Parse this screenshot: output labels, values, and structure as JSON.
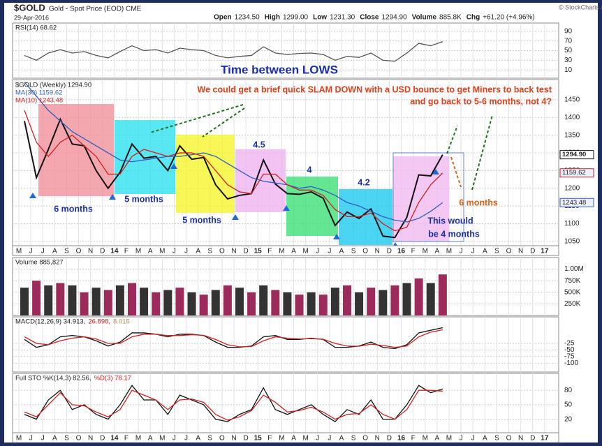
{
  "header": {
    "ticker": "$GOLD",
    "name": "Gold - Spot Price (EOD) CME",
    "date": "29-Apr-2016",
    "quote": [
      {
        "label": "Open",
        "value": "1234.50"
      },
      {
        "label": "High",
        "value": "1299.00"
      },
      {
        "label": "Low",
        "value": "1231.30"
      },
      {
        "label": "Close",
        "value": "1294.90"
      },
      {
        "label": "Volume",
        "value": "885.8K"
      },
      {
        "label": "Chg",
        "value": "+61.20 (+4.96%)"
      }
    ],
    "credit": "© StockCharts.com"
  },
  "chart_data": [
    {
      "type": "line",
      "ylim": [
        -7,
        107
      ],
      "yticks": [
        10,
        30,
        50,
        70,
        90
      ],
      "grid": true,
      "series": [
        {
          "name": "RSI(14) 68.62",
          "color": "#555555",
          "values": [
            40,
            30,
            45,
            52,
            45,
            48,
            40,
            35,
            48,
            60,
            50,
            52,
            45,
            55,
            52,
            50,
            40,
            35,
            38,
            40,
            58,
            45,
            42,
            44,
            45,
            42,
            30,
            38,
            36,
            45,
            30,
            28,
            45,
            65,
            60,
            68.62,
            null,
            null,
            null,
            null,
            null,
            null,
            null,
            null,
            null
          ]
        }
      ]
    },
    {
      "type": "line",
      "title": "Time between LOWS",
      "ylim": [
        1038,
        1507
      ],
      "yticks": [
        1050,
        1100,
        1150,
        1200,
        1250,
        1300,
        1350,
        1400,
        1450
      ],
      "grid": true,
      "categories": [
        "M",
        "J",
        "J",
        "A",
        "S",
        "O",
        "N",
        "D",
        "14",
        "F",
        "M",
        "A",
        "M",
        "J",
        "J",
        "A",
        "S",
        "O",
        "N",
        "D",
        "15",
        "F",
        "M",
        "A",
        "M",
        "J",
        "J",
        "A",
        "S",
        "O",
        "N",
        "D",
        "16",
        "F",
        "M",
        "A",
        "M",
        "J",
        "J",
        "A",
        "S",
        "O",
        "N",
        "D",
        "17"
      ],
      "series": [
        {
          "name": "$GOLD (Weekly) 1294.90",
          "color": "#111111",
          "values": [
            1390,
            1230,
            1310,
            1395,
            1325,
            1320,
            1250,
            1200,
            1245,
            1325,
            1285,
            1290,
            1250,
            1320,
            1282,
            1287,
            1210,
            1170,
            1180,
            1185,
            1280,
            1212,
            1185,
            1183,
            1190,
            1172,
            1095,
            1133,
            1115,
            1142,
            1065,
            1061,
            1118,
            1238,
            1235,
            1294.9,
            null,
            null,
            null,
            null,
            null,
            null,
            null,
            null,
            null
          ]
        },
        {
          "name": "MA(30) 1159.62",
          "color": "#2f5fc0",
          "values": [
            1500,
            1460,
            1420,
            1390,
            1360,
            1340,
            1320,
            1300,
            1280,
            1275,
            1280,
            1285,
            1290,
            1290,
            1295,
            1300,
            1290,
            1270,
            1250,
            1230,
            1220,
            1215,
            1210,
            1200,
            1205,
            1195,
            1180,
            1160,
            1150,
            1135,
            1120,
            1110,
            1105,
            1115,
            1135,
            1159.62,
            null,
            null,
            null,
            null,
            null,
            null,
            null,
            null,
            null
          ]
        },
        {
          "name": "MA(10) 1243.48",
          "color": "#d02020",
          "values": [
            1420,
            1330,
            1290,
            1330,
            1350,
            1320,
            1290,
            1240,
            1240,
            1290,
            1310,
            1300,
            1290,
            1300,
            1300,
            1290,
            1250,
            1210,
            1190,
            1185,
            1240,
            1240,
            1210,
            1195,
            1195,
            1180,
            1140,
            1120,
            1120,
            1130,
            1100,
            1080,
            1090,
            1160,
            1210,
            1243.48,
            null,
            null,
            null,
            null,
            null,
            null,
            null,
            null,
            null
          ]
        }
      ],
      "right_labels": [
        "1294.90",
        "1243.48",
        "1159.62"
      ],
      "annotations": [
        {
          "text": "We could get a brief quick SLAM DOWN with a USD bounce to get Miners to back test",
          "color": "#e0401a"
        },
        {
          "text": "and go back to 5-6 months, not 4?",
          "color": "#e0401a"
        },
        {
          "text": "6 months",
          "color": "#1a2fa8"
        },
        {
          "text": "5 months",
          "color": "#1a2fa8"
        },
        {
          "text": "5 months",
          "color": "#1a2fa8"
        },
        {
          "text": "4.5",
          "color": "#1a2fa8"
        },
        {
          "text": "4",
          "color": "#1a2fa8"
        },
        {
          "text": "4.2",
          "color": "#1a2fa8"
        },
        {
          "text": "6 months",
          "color": "#e0601a"
        },
        {
          "text": "This would",
          "color": "#1a2fa8"
        },
        {
          "text": "be 4 months",
          "color": "#1a2fa8"
        }
      ]
    },
    {
      "type": "bar",
      "ylim": [
        0,
        1250000
      ],
      "grid": true,
      "yticks": [
        {
          "value": 250000,
          "label": "250K"
        },
        {
          "value": 500000,
          "label": "500K"
        },
        {
          "value": 750000,
          "label": "750K"
        },
        {
          "value": 1000000,
          "label": "1.00M"
        }
      ],
      "series": [
        {
          "name": "Volume 885,827",
          "color": "#9c2a5a",
          "values": [
            600000,
            750000,
            650000,
            700000,
            650000,
            500000,
            600000,
            550000,
            650000,
            700000,
            600000,
            500000,
            550000,
            600000,
            500000,
            450000,
            550000,
            650000,
            600000,
            500000,
            650000,
            550000,
            500000,
            450000,
            500000,
            450000,
            600000,
            650000,
            500000,
            600000,
            550000,
            650000,
            700000,
            800000,
            700000,
            885827,
            null,
            null,
            null,
            null,
            null,
            null,
            null,
            null,
            null
          ]
        }
      ]
    },
    {
      "type": "line",
      "ylim": [
        -134,
        76
      ],
      "yticks": [
        -25,
        -50,
        -75,
        -100
      ],
      "grid": true,
      "series": [
        {
          "name": "MACD(12,26,9) 34.913,",
          "color": "#111111",
          "values": [
            -10,
            -40,
            -30,
            0,
            5,
            0,
            -15,
            -35,
            -20,
            15,
            15,
            10,
            0,
            10,
            10,
            5,
            -20,
            -40,
            -40,
            -35,
            0,
            5,
            -10,
            -10,
            -5,
            -10,
            -40,
            -40,
            -35,
            -20,
            -40,
            -45,
            -30,
            15,
            25,
            34.913,
            null,
            null,
            null,
            null,
            null,
            null,
            null,
            null,
            null
          ]
        },
        {
          "name": "26.898,",
          "color": "#d02020",
          "values": [
            0,
            -25,
            -30,
            -15,
            -5,
            0,
            -8,
            -25,
            -25,
            0,
            10,
            10,
            5,
            5,
            8,
            6,
            -10,
            -30,
            -38,
            -37,
            -15,
            0,
            -5,
            -8,
            -7,
            -9,
            -25,
            -35,
            -36,
            -28,
            -33,
            -40,
            -35,
            0,
            18,
            26.898,
            null,
            null,
            null,
            null,
            null,
            null,
            null,
            null,
            null
          ]
        }
      ],
      "histogram_label": "8.015"
    },
    {
      "type": "line",
      "ylim": [
        -8,
        115
      ],
      "yticks": [
        20,
        50,
        80
      ],
      "grid": true,
      "series": [
        {
          "name": "Full STO %K(14,3) 82.56,",
          "color": "#111111",
          "values": [
            30,
            20,
            60,
            80,
            40,
            50,
            30,
            20,
            50,
            90,
            60,
            60,
            30,
            70,
            60,
            50,
            20,
            15,
            30,
            40,
            85,
            40,
            30,
            40,
            50,
            30,
            15,
            40,
            30,
            60,
            20,
            20,
            50,
            90,
            75,
            82.56,
            null,
            null,
            null,
            null,
            null,
            null,
            null,
            null,
            null
          ]
        },
        {
          "name": "%D(3) 78.17",
          "color": "#d02020",
          "values": [
            35,
            25,
            50,
            75,
            50,
            48,
            35,
            25,
            40,
            80,
            70,
            60,
            40,
            60,
            62,
            55,
            30,
            18,
            25,
            38,
            70,
            55,
            35,
            38,
            45,
            35,
            20,
            30,
            32,
            50,
            30,
            20,
            40,
            80,
            80,
            78.17,
            null,
            null,
            null,
            null,
            null,
            null,
            null,
            null,
            null
          ]
        }
      ]
    }
  ]
}
